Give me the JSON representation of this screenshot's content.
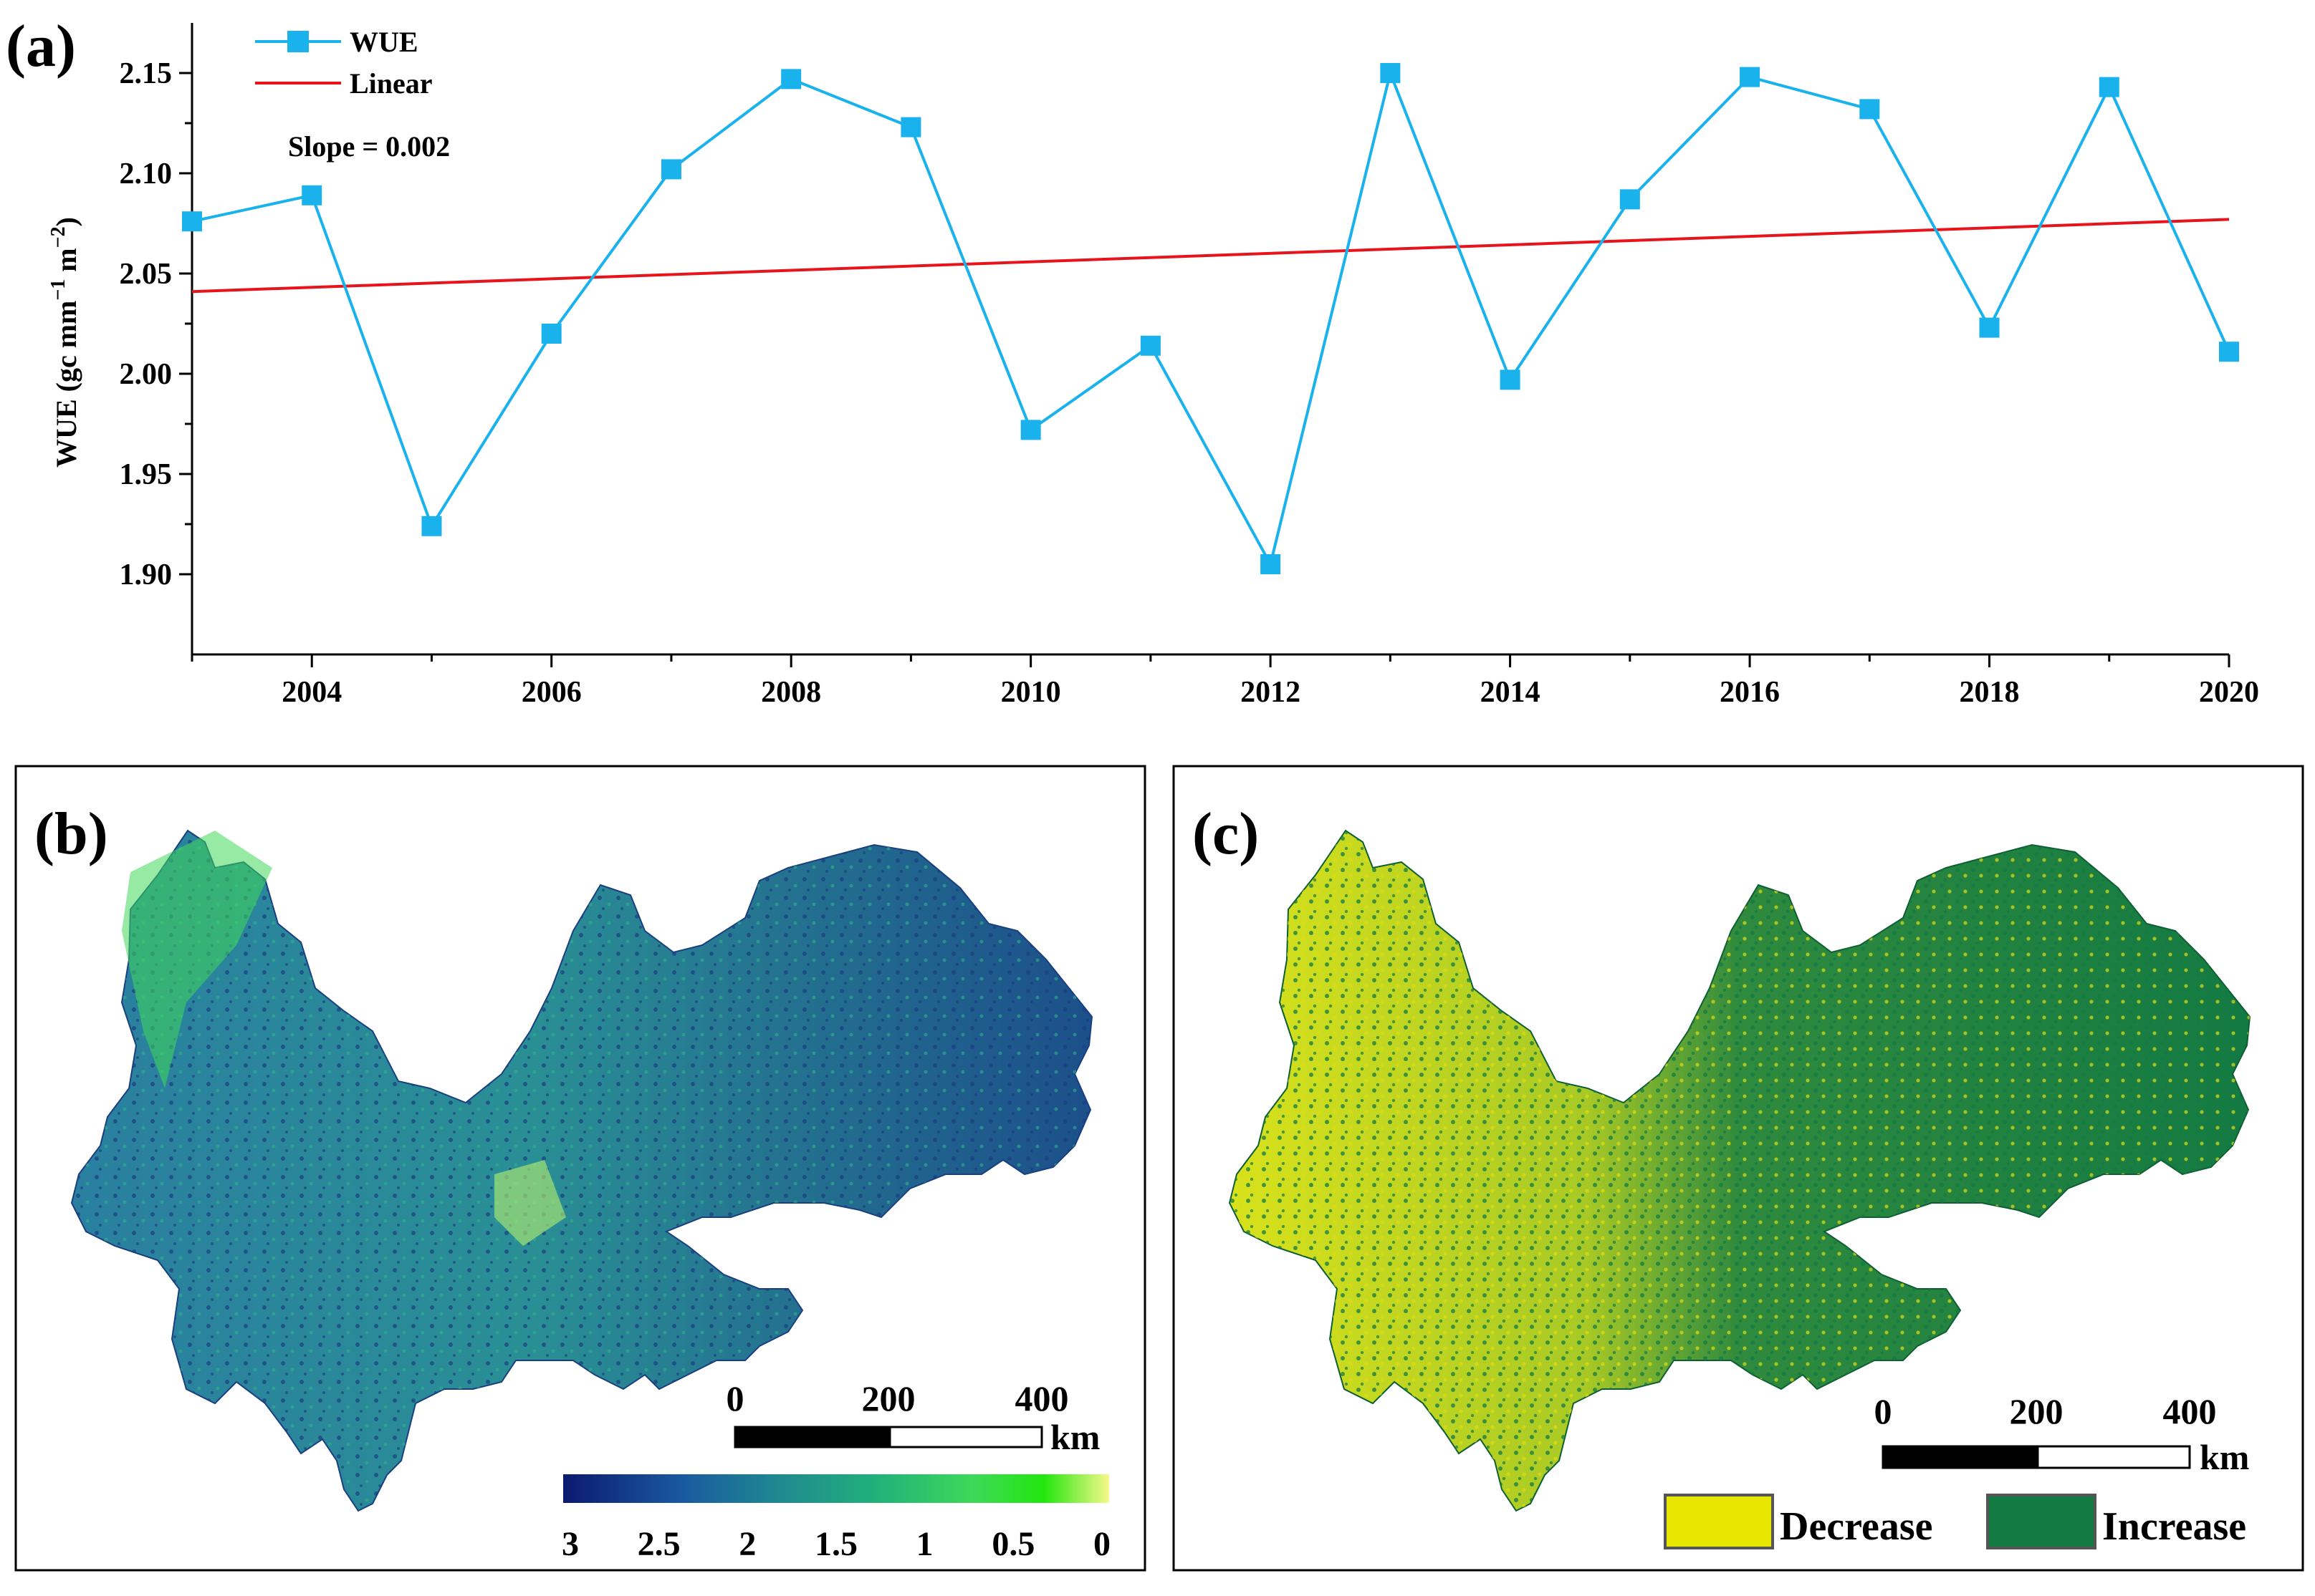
{
  "panels": {
    "a": "(a)",
    "b": "(b)",
    "c": "(c)"
  },
  "chart_data": [
    {
      "type": "line",
      "panel": "(a)",
      "x": [
        2003,
        2004,
        2005,
        2006,
        2007,
        2008,
        2009,
        2010,
        2011,
        2012,
        2013,
        2014,
        2015,
        2016,
        2017,
        2018,
        2019,
        2020
      ],
      "series": [
        {
          "name": "WUE",
          "color": "#1ab2ec",
          "marker": "square",
          "values": [
            2.076,
            2.089,
            1.924,
            2.02,
            2.102,
            2.147,
            2.123,
            1.972,
            2.014,
            1.905,
            2.15,
            1.997,
            2.087,
            2.148,
            2.132,
            2.023,
            2.143,
            2.011
          ]
        },
        {
          "name": "Linear",
          "color": "#e8141b",
          "type": "trend",
          "values": [
            2.041,
            2.077
          ],
          "x": [
            2003,
            2020
          ]
        }
      ],
      "annotation": "Slope = 0.002",
      "ylabel_main": "WUE (gc mm",
      "ylabel_sup1": "−1",
      "ylabel_mid": " m",
      "ylabel_sup2": "−2",
      "ylabel_end": ")",
      "xlim": [
        2003,
        2020
      ],
      "ylim": [
        1.86,
        2.175
      ],
      "xticks": [
        "2004",
        "2006",
        "2008",
        "2010",
        "2012",
        "2014",
        "2016",
        "2018",
        "2020"
      ],
      "yticks": [
        "1.90",
        "1.95",
        "2.00",
        "2.05",
        "2.10",
        "2.15"
      ]
    },
    {
      "type": "map",
      "panel": "(b)",
      "scale_bar": {
        "labels": [
          "0",
          "200",
          "400"
        ],
        "unit": "km"
      },
      "colorbar": {
        "labels": [
          "3",
          "2.5",
          "2",
          "1.5",
          "1",
          "0.5",
          "0"
        ],
        "colors": [
          "#0b1a6e",
          "#1a5aa0",
          "#1f8a90",
          "#22b27a",
          "#3fd85a",
          "#22e60e",
          "#f7f98a"
        ]
      }
    },
    {
      "type": "map",
      "panel": "(c)",
      "scale_bar": {
        "labels": [
          "0",
          "200",
          "400"
        ],
        "unit": "km"
      },
      "legend": [
        {
          "label": "Decrease",
          "color": "#e6e600"
        },
        {
          "label": "Increase",
          "color": "#137a43"
        }
      ]
    }
  ]
}
